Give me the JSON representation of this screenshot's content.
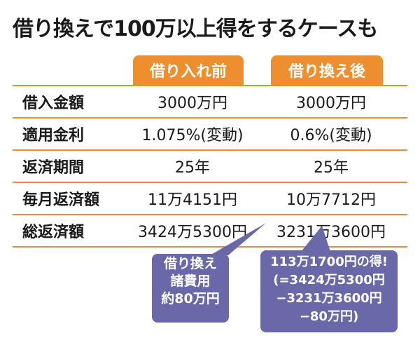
{
  "title": "借り換えで100万以上得をするケースも",
  "columns": [
    "借り入れ前",
    "借り換え後"
  ],
  "rows": [
    {
      "label": "借入金額",
      "before": "3000万円",
      "after": "3000万円"
    },
    {
      "label": "適用金利",
      "before": "1.075%(変動)",
      "after": "0.6%(変動)"
    },
    {
      "label": "返済期間",
      "before": "25年",
      "after": "25年"
    },
    {
      "label": "毎月返済額",
      "before": "11万4151円",
      "after": "10万7712円"
    },
    {
      "label": "総返済額",
      "before": "3424万5300円",
      "after": "3231万3600円"
    }
  ],
  "callout_fees": {
    "lines": [
      "借り換え",
      "諸費用",
      "約80万円"
    ]
  },
  "callout_savings": {
    "lines": [
      "113万1700円の得!",
      "(=3424万5300円",
      "−3231万3600円",
      "−80万円)"
    ]
  },
  "colors": {
    "accent": "#ee8f2f",
    "bubble": "#6a68a8"
  }
}
